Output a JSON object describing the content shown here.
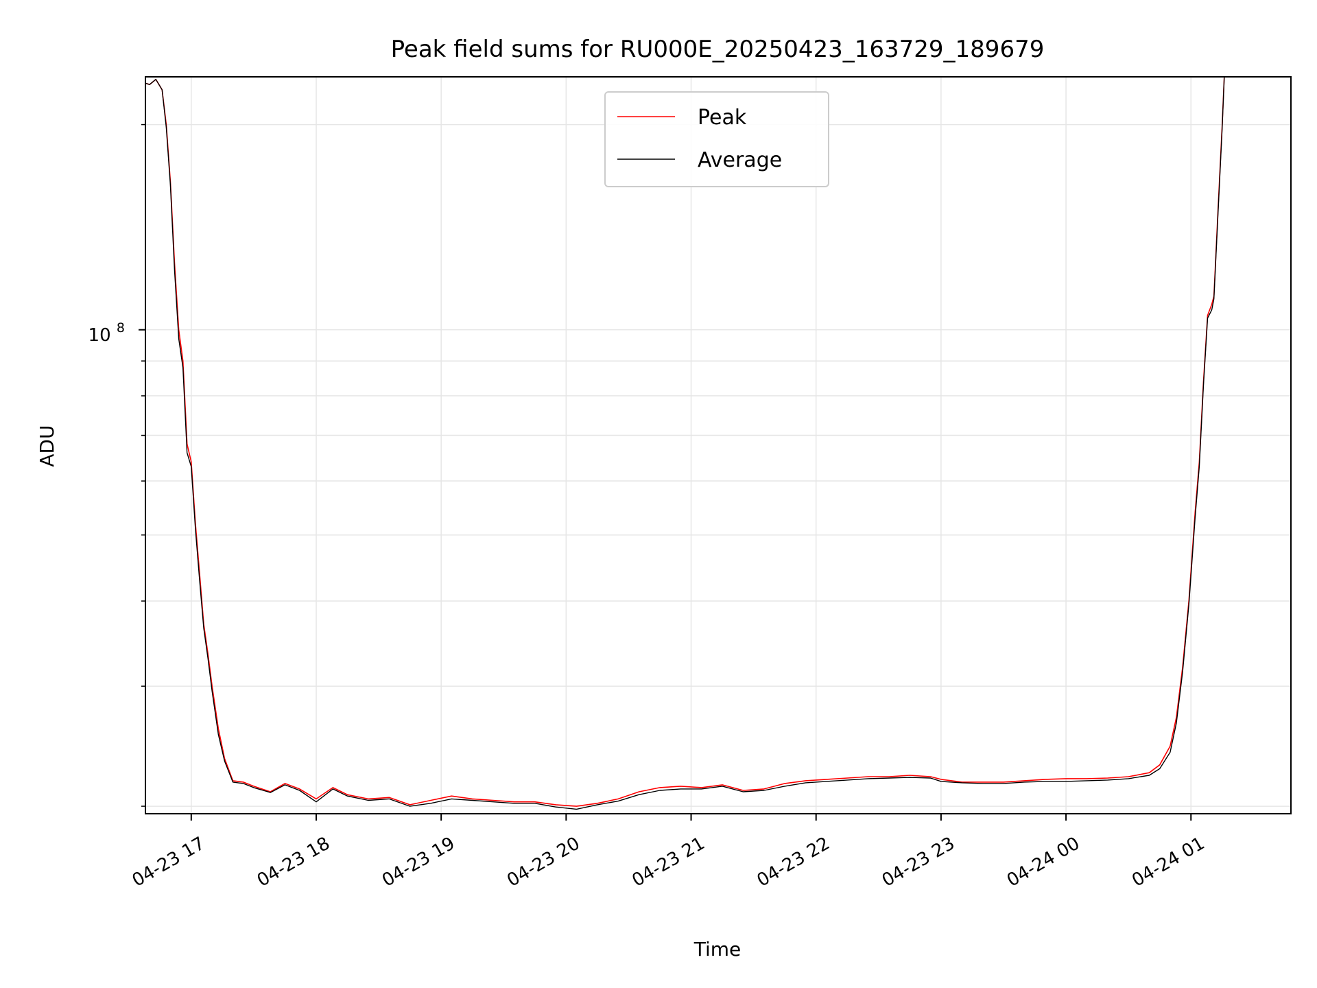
{
  "chart_data": {
    "type": "line",
    "title": "Peak field sums for RU000E_20250423_163729_189679",
    "xlabel": "Time",
    "ylabel": "ADU",
    "y_scale": "log",
    "ylim": [
      19500000,
      235000000
    ],
    "y_tick_label": {
      "base": "10",
      "exponent": "8",
      "value": 100000000
    },
    "xlim": [
      "2025-04-23 16:38",
      "2025-04-24 01:48"
    ],
    "x_ticks": [
      {
        "label": "04-23 17",
        "time": "2025-04-23 17:00"
      },
      {
        "label": "04-23 18",
        "time": "2025-04-23 18:00"
      },
      {
        "label": "04-23 19",
        "time": "2025-04-23 19:00"
      },
      {
        "label": "04-23 20",
        "time": "2025-04-23 20:00"
      },
      {
        "label": "04-23 21",
        "time": "2025-04-23 21:00"
      },
      {
        "label": "04-23 22",
        "time": "2025-04-23 22:00"
      },
      {
        "label": "04-23 23",
        "time": "2025-04-23 23:00"
      },
      {
        "label": "04-24 00",
        "time": "2025-04-24 00:00"
      },
      {
        "label": "04-24 01",
        "time": "2025-04-24 01:00"
      }
    ],
    "grid": true,
    "legend_position": "top-center",
    "series": [
      {
        "name": "Peak",
        "color": "#ff0000",
        "points": [
          [
            "2025-04-23 16:38",
            230000000
          ],
          [
            "2025-04-23 16:40",
            229000000
          ],
          [
            "2025-04-23 16:43",
            233000000
          ],
          [
            "2025-04-23 16:46",
            225000000
          ],
          [
            "2025-04-23 16:48",
            200000000
          ],
          [
            "2025-04-23 16:50",
            165000000
          ],
          [
            "2025-04-23 16:52",
            125000000
          ],
          [
            "2025-04-23 16:54",
            100000000
          ],
          [
            "2025-04-23 16:56",
            90000000
          ],
          [
            "2025-04-23 16:58",
            68000000
          ],
          [
            "2025-04-23 17:00",
            64000000
          ],
          [
            "2025-04-23 17:02",
            52000000
          ],
          [
            "2025-04-23 17:04",
            44000000
          ],
          [
            "2025-04-23 17:06",
            37000000
          ],
          [
            "2025-04-23 17:08",
            33500000
          ],
          [
            "2025-04-23 17:10",
            30000000
          ],
          [
            "2025-04-23 17:13",
            26000000
          ],
          [
            "2025-04-23 17:16",
            23500000
          ],
          [
            "2025-04-23 17:20",
            21800000
          ],
          [
            "2025-04-23 17:25",
            21700000
          ],
          [
            "2025-04-23 17:30",
            21400000
          ],
          [
            "2025-04-23 17:38",
            21000000
          ],
          [
            "2025-04-23 17:45",
            21600000
          ],
          [
            "2025-04-23 17:52",
            21200000
          ],
          [
            "2025-04-23 18:00",
            20500000
          ],
          [
            "2025-04-23 18:08",
            21300000
          ],
          [
            "2025-04-23 18:15",
            20800000
          ],
          [
            "2025-04-23 18:25",
            20500000
          ],
          [
            "2025-04-23 18:35",
            20600000
          ],
          [
            "2025-04-23 18:45",
            20100000
          ],
          [
            "2025-04-23 18:55",
            20400000
          ],
          [
            "2025-04-23 19:05",
            20700000
          ],
          [
            "2025-04-23 19:15",
            20500000
          ],
          [
            "2025-04-23 19:25",
            20400000
          ],
          [
            "2025-04-23 19:35",
            20300000
          ],
          [
            "2025-04-23 19:45",
            20300000
          ],
          [
            "2025-04-23 19:55",
            20100000
          ],
          [
            "2025-04-23 20:05",
            20000000
          ],
          [
            "2025-04-23 20:15",
            20200000
          ],
          [
            "2025-04-23 20:25",
            20500000
          ],
          [
            "2025-04-23 20:35",
            21000000
          ],
          [
            "2025-04-23 20:45",
            21300000
          ],
          [
            "2025-04-23 20:55",
            21400000
          ],
          [
            "2025-04-23 21:05",
            21300000
          ],
          [
            "2025-04-23 21:15",
            21500000
          ],
          [
            "2025-04-23 21:25",
            21100000
          ],
          [
            "2025-04-23 21:35",
            21200000
          ],
          [
            "2025-04-23 21:45",
            21600000
          ],
          [
            "2025-04-23 21:55",
            21800000
          ],
          [
            "2025-04-23 22:05",
            21900000
          ],
          [
            "2025-04-23 22:15",
            22000000
          ],
          [
            "2025-04-23 22:25",
            22100000
          ],
          [
            "2025-04-23 22:35",
            22100000
          ],
          [
            "2025-04-23 22:45",
            22200000
          ],
          [
            "2025-04-23 22:55",
            22100000
          ],
          [
            "2025-04-23 23:00",
            21900000
          ],
          [
            "2025-04-23 23:10",
            21700000
          ],
          [
            "2025-04-23 23:20",
            21700000
          ],
          [
            "2025-04-23 23:30",
            21700000
          ],
          [
            "2025-04-23 23:40",
            21800000
          ],
          [
            "2025-04-23 23:50",
            21900000
          ],
          [
            "2025-04-24 00:00",
            21950000
          ],
          [
            "2025-04-24 00:10",
            21950000
          ],
          [
            "2025-04-24 00:20",
            22000000
          ],
          [
            "2025-04-24 00:30",
            22100000
          ],
          [
            "2025-04-24 00:40",
            22400000
          ],
          [
            "2025-04-24 00:45",
            23000000
          ],
          [
            "2025-04-24 00:50",
            24500000
          ],
          [
            "2025-04-24 00:53",
            27000000
          ],
          [
            "2025-04-24 00:56",
            32000000
          ],
          [
            "2025-04-24 00:59",
            40000000
          ],
          [
            "2025-04-24 01:02",
            54000000
          ],
          [
            "2025-04-24 01:04",
            64000000
          ],
          [
            "2025-04-24 01:06",
            84000000
          ],
          [
            "2025-04-24 01:08",
            105000000
          ],
          [
            "2025-04-24 01:10",
            109000000
          ],
          [
            "2025-04-24 01:11",
            112000000
          ],
          [
            "2025-04-24 01:13",
            150000000
          ],
          [
            "2025-04-24 01:15",
            200000000
          ],
          [
            "2025-04-24 01:16",
            235000000
          ]
        ]
      },
      {
        "name": "Average",
        "color": "#000000",
        "points": [
          [
            "2025-04-23 16:38",
            230000000
          ],
          [
            "2025-04-23 16:40",
            229000000
          ],
          [
            "2025-04-23 16:43",
            233000000
          ],
          [
            "2025-04-23 16:46",
            225000000
          ],
          [
            "2025-04-23 16:48",
            198000000
          ],
          [
            "2025-04-23 16:50",
            163000000
          ],
          [
            "2025-04-23 16:52",
            122000000
          ],
          [
            "2025-04-23 16:54",
            97000000
          ],
          [
            "2025-04-23 16:56",
            88000000
          ],
          [
            "2025-04-23 16:58",
            66000000
          ],
          [
            "2025-04-23 17:00",
            63000000
          ],
          [
            "2025-04-23 17:02",
            51000000
          ],
          [
            "2025-04-23 17:04",
            43000000
          ],
          [
            "2025-04-23 17:06",
            36500000
          ],
          [
            "2025-04-23 17:08",
            33000000
          ],
          [
            "2025-04-23 17:10",
            29500000
          ],
          [
            "2025-04-23 17:13",
            25500000
          ],
          [
            "2025-04-23 17:16",
            23300000
          ],
          [
            "2025-04-23 17:20",
            21700000
          ],
          [
            "2025-04-23 17:25",
            21600000
          ],
          [
            "2025-04-23 17:30",
            21300000
          ],
          [
            "2025-04-23 17:38",
            20950000
          ],
          [
            "2025-04-23 17:45",
            21500000
          ],
          [
            "2025-04-23 17:52",
            21100000
          ],
          [
            "2025-04-23 18:00",
            20300000
          ],
          [
            "2025-04-23 18:08",
            21200000
          ],
          [
            "2025-04-23 18:15",
            20700000
          ],
          [
            "2025-04-23 18:25",
            20400000
          ],
          [
            "2025-04-23 18:35",
            20500000
          ],
          [
            "2025-04-23 18:45",
            20000000
          ],
          [
            "2025-04-23 18:55",
            20200000
          ],
          [
            "2025-04-23 19:05",
            20500000
          ],
          [
            "2025-04-23 19:15",
            20400000
          ],
          [
            "2025-04-23 19:25",
            20300000
          ],
          [
            "2025-04-23 19:35",
            20200000
          ],
          [
            "2025-04-23 19:45",
            20200000
          ],
          [
            "2025-04-23 19:55",
            19950000
          ],
          [
            "2025-04-23 20:05",
            19800000
          ],
          [
            "2025-04-23 20:15",
            20100000
          ],
          [
            "2025-04-23 20:25",
            20350000
          ],
          [
            "2025-04-23 20:35",
            20800000
          ],
          [
            "2025-04-23 20:45",
            21100000
          ],
          [
            "2025-04-23 20:55",
            21200000
          ],
          [
            "2025-04-23 21:05",
            21200000
          ],
          [
            "2025-04-23 21:15",
            21400000
          ],
          [
            "2025-04-23 21:25",
            21000000
          ],
          [
            "2025-04-23 21:35",
            21100000
          ],
          [
            "2025-04-23 21:45",
            21400000
          ],
          [
            "2025-04-23 21:55",
            21650000
          ],
          [
            "2025-04-23 22:05",
            21750000
          ],
          [
            "2025-04-23 22:15",
            21850000
          ],
          [
            "2025-04-23 22:25",
            21950000
          ],
          [
            "2025-04-23 22:35",
            22000000
          ],
          [
            "2025-04-23 22:45",
            22050000
          ],
          [
            "2025-04-23 22:55",
            22000000
          ],
          [
            "2025-04-23 23:00",
            21750000
          ],
          [
            "2025-04-23 23:10",
            21650000
          ],
          [
            "2025-04-23 23:20",
            21600000
          ],
          [
            "2025-04-23 23:30",
            21600000
          ],
          [
            "2025-04-23 23:40",
            21700000
          ],
          [
            "2025-04-23 23:50",
            21750000
          ],
          [
            "2025-04-24 00:00",
            21750000
          ],
          [
            "2025-04-24 00:10",
            21800000
          ],
          [
            "2025-04-24 00:20",
            21850000
          ],
          [
            "2025-04-24 00:30",
            21950000
          ],
          [
            "2025-04-24 00:40",
            22200000
          ],
          [
            "2025-04-24 00:45",
            22700000
          ],
          [
            "2025-04-24 00:50",
            24000000
          ],
          [
            "2025-04-24 00:53",
            26500000
          ],
          [
            "2025-04-24 00:56",
            31500000
          ],
          [
            "2025-04-24 00:59",
            39500000
          ],
          [
            "2025-04-24 01:02",
            53000000
          ],
          [
            "2025-04-24 01:04",
            63000000
          ],
          [
            "2025-04-24 01:06",
            83000000
          ],
          [
            "2025-04-24 01:08",
            104000000
          ],
          [
            "2025-04-24 01:10",
            107000000
          ],
          [
            "2025-04-24 01:11",
            111000000
          ],
          [
            "2025-04-24 01:13",
            148000000
          ],
          [
            "2025-04-24 01:15",
            198000000
          ],
          [
            "2025-04-24 01:16",
            235000000
          ]
        ]
      }
    ]
  }
}
